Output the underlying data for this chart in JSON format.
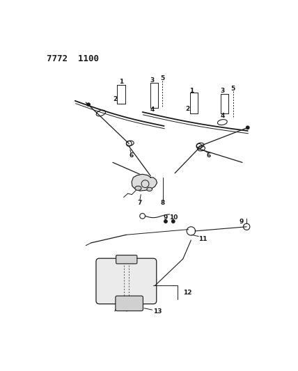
{
  "title": "7772  1100",
  "bg_color": "#ffffff",
  "line_color": "#1a1a1a",
  "fig_width": 4.28,
  "fig_height": 5.33,
  "dpi": 100
}
